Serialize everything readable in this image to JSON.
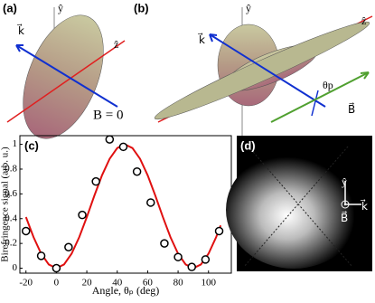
{
  "panel_labels": [
    "(a)",
    "(b)",
    "(c)",
    "(d)"
  ],
  "annotations": {
    "a_y": "ŷ",
    "a_z": "ẑ",
    "a_k": "k⃗",
    "a_b": "B = 0",
    "b_y": "ŷ",
    "b_z": "ẑ",
    "b_k": "k⃗",
    "b_theta": "θp",
    "b_B": "B⃗",
    "d_y": "ŷ",
    "d_k": "k⃗",
    "d_B": "B⃗"
  },
  "chart_data": {
    "type": "scatter",
    "x_label": "Angle, θₚ (deg)",
    "y_label": "Birefringence signal (arb. u.)",
    "xlim": [
      -24,
      115
    ],
    "ylim": [
      -0.04,
      1.07
    ],
    "xticks": [
      -20,
      0,
      20,
      40,
      60,
      80,
      100
    ],
    "yticks": [
      0,
      0.2,
      0.4,
      0.6,
      0.8,
      1
    ],
    "series": [
      {
        "type": "line",
        "color": "#e01010",
        "x": [
          -20,
          -15,
          -10,
          -5,
          0,
          5,
          10,
          15,
          20,
          25,
          30,
          35,
          40,
          45,
          50,
          55,
          60,
          65,
          70,
          75,
          80,
          85,
          90,
          95,
          100,
          105,
          108
        ],
        "values": [
          0.413,
          0.25,
          0.117,
          0.03,
          0,
          0.03,
          0.117,
          0.25,
          0.413,
          0.587,
          0.75,
          0.883,
          0.97,
          1,
          0.97,
          0.883,
          0.75,
          0.587,
          0.413,
          0.25,
          0.117,
          0.03,
          0,
          0.03,
          0.117,
          0.25,
          0.345
        ]
      },
      {
        "type": "scatter",
        "color": "#000000",
        "x": [
          -20,
          -10,
          0,
          8,
          17,
          26,
          35,
          44,
          53,
          62,
          71,
          80,
          89,
          98,
          107
        ],
        "values": [
          0.3,
          0.1,
          0.0,
          0.17,
          0.43,
          0.7,
          1.04,
          0.98,
          0.78,
          0.53,
          0.2,
          0.09,
          0.01,
          0.07,
          0.3
        ]
      }
    ]
  }
}
